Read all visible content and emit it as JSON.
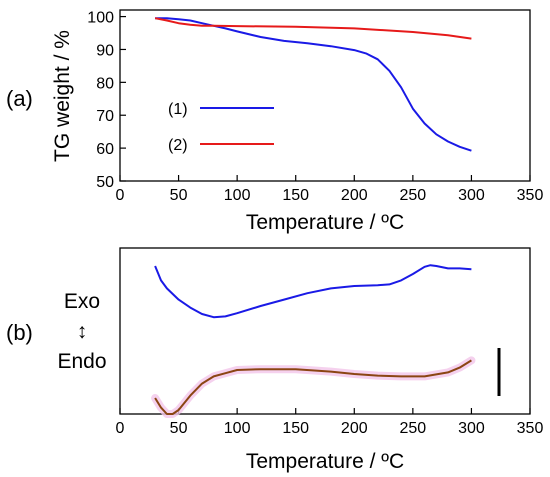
{
  "chart_data": [
    {
      "panel": "(a)",
      "type": "line",
      "xlabel": "Temperature / ºC",
      "ylabel": "TG weight / %",
      "xlim": [
        0,
        350
      ],
      "ylim": [
        50,
        102
      ],
      "x_ticks": [
        0,
        50,
        100,
        150,
        200,
        250,
        300,
        350
      ],
      "y_ticks": [
        50,
        60,
        70,
        80,
        90,
        100
      ],
      "grid": false,
      "legend_position": "left-middle",
      "series": [
        {
          "name": "(1)",
          "color": "#1a1ae6",
          "x": [
            30,
            40,
            50,
            60,
            70,
            80,
            90,
            100,
            120,
            140,
            160,
            180,
            200,
            210,
            220,
            230,
            240,
            250,
            260,
            270,
            280,
            290,
            300
          ],
          "y": [
            99.5,
            99.5,
            99.2,
            98.8,
            98.0,
            97.2,
            96.4,
            95.5,
            93.8,
            92.6,
            91.9,
            91.0,
            89.8,
            88.8,
            87.0,
            83.5,
            78.5,
            72.0,
            67.5,
            64.2,
            62.0,
            60.4,
            59.2
          ]
        },
        {
          "name": "(2)",
          "color": "#e61a1a",
          "x": [
            30,
            40,
            50,
            60,
            70,
            80,
            100,
            150,
            200,
            250,
            280,
            300
          ],
          "y": [
            99.5,
            98.8,
            98.0,
            97.5,
            97.2,
            97.2,
            97.1,
            96.9,
            96.4,
            95.3,
            94.3,
            93.3
          ]
        }
      ]
    },
    {
      "panel": "(b)",
      "type": "line",
      "xlabel": "Temperature / ºC",
      "ylabel": "",
      "xlim": [
        0,
        350
      ],
      "x_ticks": [
        0,
        50,
        100,
        150,
        200,
        250,
        300,
        350
      ],
      "y_ticks": [],
      "grid": false,
      "side_labels": {
        "top": "Exo",
        "bottom": "Endo"
      },
      "series": [
        {
          "name": "(1)",
          "color": "#1a1ae6",
          "x": [
            30,
            35,
            40,
            50,
            60,
            70,
            80,
            90,
            100,
            120,
            140,
            160,
            180,
            200,
            220,
            230,
            240,
            250,
            260,
            265,
            270,
            280,
            290,
            300
          ],
          "y": [
            0.8,
            0.62,
            0.52,
            0.38,
            0.28,
            0.2,
            0.16,
            0.17,
            0.21,
            0.3,
            0.38,
            0.46,
            0.52,
            0.55,
            0.56,
            0.57,
            0.62,
            0.7,
            0.79,
            0.81,
            0.8,
            0.77,
            0.77,
            0.76
          ]
        },
        {
          "name": "(2)",
          "color": "#8b4513",
          "x": [
            30,
            35,
            40,
            45,
            50,
            60,
            70,
            80,
            90,
            100,
            120,
            150,
            180,
            200,
            220,
            240,
            260,
            280,
            290,
            300
          ],
          "y": [
            -0.85,
            -0.97,
            -1.05,
            -1.05,
            -1.0,
            -0.82,
            -0.67,
            -0.58,
            -0.54,
            -0.5,
            -0.49,
            -0.49,
            -0.52,
            -0.55,
            -0.57,
            -0.58,
            -0.58,
            -0.53,
            -0.47,
            -0.38
          ]
        }
      ]
    }
  ],
  "legend": {
    "items": [
      {
        "label": "(1)",
        "color": "#1a1ae6"
      },
      {
        "label": "(2)",
        "color": "#e61a1a"
      }
    ]
  },
  "labels": {
    "panel_a": "(a)",
    "panel_b": "(b)",
    "exo": "Exo",
    "endo": "Endo",
    "arrow": "↕"
  }
}
